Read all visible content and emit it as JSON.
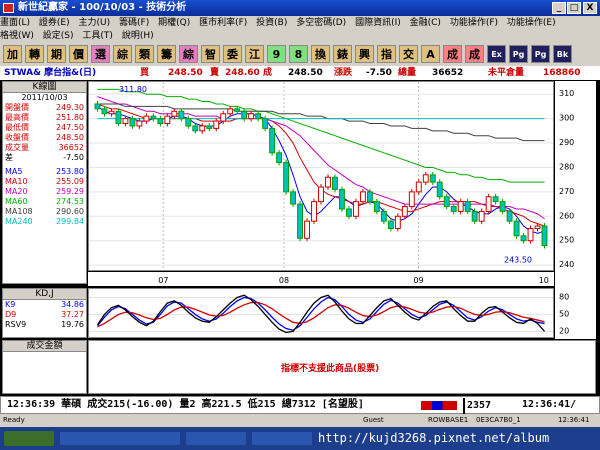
{
  "window": {
    "title": "新世紀贏家 - 100/10/03 - 技術分析",
    "controls": [
      "_",
      "□",
      "X"
    ]
  },
  "menu": {
    "row1": [
      "畫面(L)",
      "證券(E)",
      "主力(U)",
      "籌碼(F)",
      "期權(Q)",
      "匯市利率(F)",
      "投資(B)",
      "多空密碼(D)",
      "國際資訊(I)",
      "金融(C)",
      "功能操作(F)",
      "功能操作(E)"
    ],
    "row2": [
      "格視(W)",
      "設定(S)",
      "工具(T)",
      "說明(H)"
    ]
  },
  "toolbar": {
    "buttons": [
      {
        "label": "加",
        "color": "#e0c080"
      },
      {
        "label": "轉",
        "color": "#e0c080"
      },
      {
        "label": "期",
        "color": "#e0c080"
      },
      {
        "label": "價",
        "color": "#e0c080"
      },
      {
        "label": "選",
        "color": "#e080c0"
      },
      {
        "label": "綜",
        "color": "#e0c080"
      },
      {
        "label": "類",
        "color": "#e0c080"
      },
      {
        "label": "籌",
        "color": "#e0c080"
      },
      {
        "label": "綜",
        "color": "#e080c0"
      },
      {
        "label": "智",
        "color": "#e0c080"
      },
      {
        "label": "委",
        "color": "#e0c080"
      },
      {
        "label": "江",
        "color": "#e0c080"
      },
      {
        "label": "9",
        "color": "#80e080"
      },
      {
        "label": "8",
        "color": "#80e080"
      },
      {
        "label": "換",
        "color": "#e0c080"
      },
      {
        "label": "錶",
        "color": "#e0c080"
      },
      {
        "label": "興",
        "color": "#e0c080"
      },
      {
        "label": "指",
        "color": "#e0c080"
      },
      {
        "label": "交",
        "color": "#e0c080"
      },
      {
        "label": "A",
        "color": "#e0c080"
      },
      {
        "label": "成",
        "color": "#ff8080"
      },
      {
        "label": "成",
        "color": "#ff8080"
      },
      {
        "label": "Ex",
        "color": "#202060"
      },
      {
        "label": "Pg",
        "color": "#202060"
      },
      {
        "label": "Pg",
        "color": "#202060"
      },
      {
        "label": "Bk",
        "color": "#202060"
      }
    ]
  },
  "quote": {
    "symbol": "STWA& 摩台指&(日)",
    "buy_label": "買",
    "buy": "248.50",
    "sell_label": "賣",
    "sell": "248.60",
    "deal_label": "成",
    "deal": "248.50",
    "change_label": "漲跌",
    "change": "-7.50",
    "volume_label": "總量",
    "volume": "36652",
    "oi_label": "未平倉量",
    "oi": "168860"
  },
  "side": {
    "header": "K線圖",
    "date": "2011/10/03",
    "stats": [
      {
        "label": "開盤價",
        "value": "249.30",
        "color": "#d00000"
      },
      {
        "label": "最高價",
        "value": "251.80",
        "color": "#d00000"
      },
      {
        "label": "最低價",
        "value": "247.50",
        "color": "#d00000"
      },
      {
        "label": "收盤價",
        "value": "248.50",
        "color": "#d00000"
      },
      {
        "label": "成交量",
        "value": "36652",
        "color": "#d00000"
      },
      {
        "label": "差",
        "value": "-7.50",
        "color": "#000000"
      }
    ],
    "ma": [
      {
        "label": "MA5",
        "value": "253.80",
        "color": "#0000ff"
      },
      {
        "label": "MA10",
        "value": "255.09",
        "color": "#d00000"
      },
      {
        "label": "MA20",
        "value": "259.29",
        "color": "#c000c0"
      },
      {
        "label": "MA60",
        "value": "274.53",
        "color": "#00b000"
      },
      {
        "label": "MA108",
        "value": "290.60",
        "color": "#404040"
      },
      {
        "label": "MA240",
        "value": "299.84",
        "color": "#00c0c0"
      }
    ]
  },
  "chart_data": [
    {
      "type": "line",
      "title": "K線圖",
      "x_labels": [
        "07",
        "08",
        "09",
        "10"
      ],
      "ylim": [
        238,
        315
      ],
      "y_ticks": [
        240,
        250,
        260,
        270,
        280,
        290,
        300,
        310
      ],
      "annotations": [
        "311.80",
        "243.50"
      ],
      "candles": [
        {
          "o": 306,
          "c": 304
        },
        {
          "o": 304,
          "c": 302
        },
        {
          "o": 302,
          "c": 303
        },
        {
          "o": 303,
          "c": 298
        },
        {
          "o": 298,
          "c": 300
        },
        {
          "o": 300,
          "c": 297
        },
        {
          "o": 297,
          "c": 299
        },
        {
          "o": 299,
          "c": 301
        },
        {
          "o": 301,
          "c": 300
        },
        {
          "o": 300,
          "c": 298
        },
        {
          "o": 298,
          "c": 301
        },
        {
          "o": 301,
          "c": 303
        },
        {
          "o": 303,
          "c": 300
        },
        {
          "o": 300,
          "c": 297
        },
        {
          "o": 297,
          "c": 295
        },
        {
          "o": 295,
          "c": 297
        },
        {
          "o": 297,
          "c": 296
        },
        {
          "o": 296,
          "c": 299
        },
        {
          "o": 299,
          "c": 302
        },
        {
          "o": 302,
          "c": 304
        },
        {
          "o": 304,
          "c": 303
        },
        {
          "o": 303,
          "c": 300
        },
        {
          "o": 300,
          "c": 302
        },
        {
          "o": 302,
          "c": 300
        },
        {
          "o": 300,
          "c": 296
        },
        {
          "o": 296,
          "c": 286
        },
        {
          "o": 286,
          "c": 282
        },
        {
          "o": 282,
          "c": 270
        },
        {
          "o": 270,
          "c": 265
        },
        {
          "o": 265,
          "c": 251
        },
        {
          "o": 251,
          "c": 258
        },
        {
          "o": 258,
          "c": 266
        },
        {
          "o": 266,
          "c": 272
        },
        {
          "o": 272,
          "c": 276
        },
        {
          "o": 276,
          "c": 271
        },
        {
          "o": 271,
          "c": 263
        },
        {
          "o": 263,
          "c": 260
        },
        {
          "o": 260,
          "c": 266
        },
        {
          "o": 266,
          "c": 270
        },
        {
          "o": 270,
          "c": 266
        },
        {
          "o": 266,
          "c": 262
        },
        {
          "o": 262,
          "c": 258
        },
        {
          "o": 258,
          "c": 255
        },
        {
          "o": 255,
          "c": 260
        },
        {
          "o": 260,
          "c": 264
        },
        {
          "o": 264,
          "c": 270
        },
        {
          "o": 270,
          "c": 274
        },
        {
          "o": 274,
          "c": 277
        },
        {
          "o": 277,
          "c": 274
        },
        {
          "o": 274,
          "c": 268
        },
        {
          "o": 268,
          "c": 264
        },
        {
          "o": 264,
          "c": 262
        },
        {
          "o": 262,
          "c": 266
        },
        {
          "o": 266,
          "c": 262
        },
        {
          "o": 262,
          "c": 258
        },
        {
          "o": 258,
          "c": 262
        },
        {
          "o": 262,
          "c": 268
        },
        {
          "o": 268,
          "c": 266
        },
        {
          "o": 266,
          "c": 262
        },
        {
          "o": 262,
          "c": 258
        },
        {
          "o": 258,
          "c": 252
        },
        {
          "o": 252,
          "c": 250
        },
        {
          "o": 250,
          "c": 255
        },
        {
          "o": 255,
          "c": 256
        },
        {
          "o": 256,
          "c": 248
        }
      ],
      "series": [
        {
          "name": "MA5",
          "color": "#0000ff",
          "values": [
            305,
            303,
            302,
            302,
            301,
            300,
            299,
            299,
            300,
            300,
            300,
            301,
            301,
            300,
            298,
            297,
            297,
            297,
            299,
            301,
            302,
            302,
            302,
            301,
            300,
            296,
            291,
            285,
            277,
            268,
            262,
            260,
            262,
            265,
            268,
            268,
            266,
            264,
            265,
            266,
            265,
            262,
            259,
            258,
            259,
            261,
            265,
            269,
            272,
            272,
            270,
            267,
            265,
            264,
            262,
            261,
            261,
            263,
            264,
            263,
            260,
            256,
            254,
            253,
            254
          ]
        },
        {
          "name": "MA10",
          "color": "#d00000",
          "values": [
            306,
            305,
            304,
            304,
            303,
            302,
            301,
            300,
            300,
            300,
            300,
            300,
            300,
            300,
            300,
            299,
            299,
            299,
            299,
            299,
            300,
            300,
            300,
            300,
            300,
            299,
            297,
            294,
            290,
            284,
            279,
            274,
            271,
            269,
            268,
            267,
            266,
            265,
            265,
            266,
            266,
            265,
            264,
            263,
            262,
            262,
            263,
            264,
            265,
            266,
            266,
            266,
            266,
            266,
            266,
            265,
            264,
            264,
            263,
            262,
            261,
            260,
            258,
            257,
            256
          ]
        },
        {
          "name": "MA20",
          "color": "#c000c0",
          "values": [
            309,
            308,
            307,
            306,
            306,
            305,
            304,
            303,
            303,
            302,
            302,
            302,
            302,
            302,
            301,
            301,
            301,
            301,
            300,
            300,
            300,
            300,
            300,
            300,
            300,
            299,
            298,
            297,
            295,
            293,
            290,
            287,
            284,
            281,
            279,
            277,
            275,
            273,
            272,
            270,
            269,
            268,
            267,
            266,
            265,
            265,
            265,
            265,
            265,
            265,
            265,
            265,
            265,
            265,
            265,
            265,
            265,
            264,
            264,
            264,
            263,
            263,
            262,
            261,
            259
          ]
        },
        {
          "name": "MA60",
          "color": "#00b000",
          "values": [
            312,
            312,
            312,
            312,
            311,
            311,
            311,
            310,
            310,
            310,
            309,
            309,
            309,
            308,
            308,
            307,
            307,
            306,
            306,
            305,
            305,
            304,
            304,
            303,
            303,
            302,
            301,
            300,
            299,
            298,
            297,
            296,
            295,
            294,
            293,
            292,
            291,
            290,
            289,
            288,
            287,
            286,
            285,
            284,
            283,
            282,
            281,
            280,
            280,
            279,
            278,
            278,
            277,
            277,
            276,
            276,
            275,
            275,
            275,
            274,
            274,
            274,
            274,
            274,
            274
          ]
        },
        {
          "name": "MA108",
          "color": "#404040",
          "values": [
            306,
            306,
            306,
            306,
            305,
            305,
            305,
            305,
            305,
            305,
            305,
            304,
            304,
            304,
            304,
            304,
            304,
            304,
            304,
            304,
            303,
            303,
            303,
            303,
            303,
            303,
            302,
            302,
            302,
            302,
            301,
            301,
            301,
            300,
            300,
            300,
            299,
            299,
            299,
            298,
            298,
            298,
            297,
            297,
            297,
            296,
            296,
            296,
            295,
            295,
            295,
            294,
            294,
            294,
            293,
            293,
            293,
            292,
            292,
            292,
            292,
            291,
            291,
            291,
            291
          ]
        },
        {
          "name": "MA240",
          "color": "#00c0c0",
          "values": [
            300,
            300,
            300,
            300,
            300,
            300,
            300,
            300,
            300,
            300,
            300,
            300,
            300,
            300,
            300,
            300,
            300,
            300,
            300,
            300,
            300,
            300,
            300,
            300,
            300,
            300,
            300,
            300,
            300,
            300,
            300,
            300,
            300,
            300,
            300,
            300,
            300,
            300,
            300,
            300,
            300,
            300,
            300,
            300,
            300,
            300,
            300,
            300,
            300,
            300,
            300,
            300,
            300,
            300,
            300,
            300,
            300,
            300,
            300,
            300,
            300,
            300,
            300,
            300,
            300
          ]
        }
      ]
    },
    {
      "type": "line",
      "title": "KD,J",
      "ylim": [
        10,
        95
      ],
      "y_ticks": [
        20,
        50,
        80
      ],
      "series": [
        {
          "name": "K9",
          "color": "#0000ff",
          "values": [
            30,
            45,
            58,
            64,
            60,
            50,
            40,
            33,
            36,
            50,
            65,
            72,
            70,
            60,
            50,
            42,
            38,
            42,
            52,
            64,
            74,
            80,
            78,
            70,
            58,
            45,
            33,
            25,
            22,
            30,
            45,
            60,
            72,
            80,
            76,
            64,
            50,
            40,
            36,
            42,
            55,
            68,
            75,
            70,
            60,
            50,
            44,
            48,
            58,
            68,
            72,
            66,
            55,
            44,
            40,
            46,
            56,
            62,
            58,
            50,
            42,
            38,
            40,
            36,
            34
          ]
        },
        {
          "name": "D9",
          "color": "#d00000",
          "values": [
            28,
            34,
            42,
            50,
            54,
            53,
            49,
            44,
            41,
            43,
            50,
            58,
            63,
            63,
            59,
            54,
            49,
            47,
            48,
            54,
            61,
            67,
            71,
            71,
            67,
            60,
            51,
            43,
            36,
            34,
            37,
            44,
            53,
            62,
            67,
            66,
            61,
            54,
            48,
            46,
            49,
            55,
            62,
            65,
            63,
            59,
            54,
            52,
            54,
            59,
            63,
            64,
            61,
            55,
            50,
            48,
            50,
            54,
            55,
            53,
            49,
            45,
            43,
            40,
            37
          ]
        },
        {
          "name": "RSV9",
          "color": "#000000",
          "values": [
            32,
            50,
            62,
            66,
            58,
            46,
            36,
            30,
            38,
            55,
            70,
            74,
            66,
            54,
            44,
            38,
            36,
            46,
            58,
            70,
            80,
            84,
            76,
            64,
            50,
            36,
            24,
            18,
            20,
            36,
            54,
            70,
            80,
            84,
            72,
            56,
            42,
            34,
            34,
            48,
            62,
            74,
            78,
            66,
            54,
            44,
            40,
            52,
            64,
            72,
            74,
            60,
            48,
            38,
            38,
            52,
            62,
            64,
            54,
            44,
            36,
            34,
            42,
            34,
            20
          ]
        }
      ]
    }
  ],
  "kd_panel": {
    "title": "KD,J",
    "items": [
      {
        "label": "K9",
        "value": "34.86",
        "color": "#0000ff"
      },
      {
        "label": "D9",
        "value": "37.27",
        "color": "#d00000"
      },
      {
        "label": "RSV9",
        "value": "19.76",
        "color": "#000000"
      }
    ]
  },
  "volume_panel": {
    "title": "成交金額",
    "message": "指標不支援此商品(股票)"
  },
  "ticker": {
    "text": "12:36:39 華碩 成交215(-16.00) 量2 高221.5 低215 總7312 [名望股]",
    "code": "2357",
    "time": "12:36:41/"
  },
  "statusbar": {
    "left": "Ready",
    "user": "Guest",
    "node": "ROWBASE1",
    "id": "0E3CA7B0_1",
    "time": "12:36:41"
  },
  "taskbar": {
    "url": "http://kujd3268.pixnet.net/album"
  }
}
